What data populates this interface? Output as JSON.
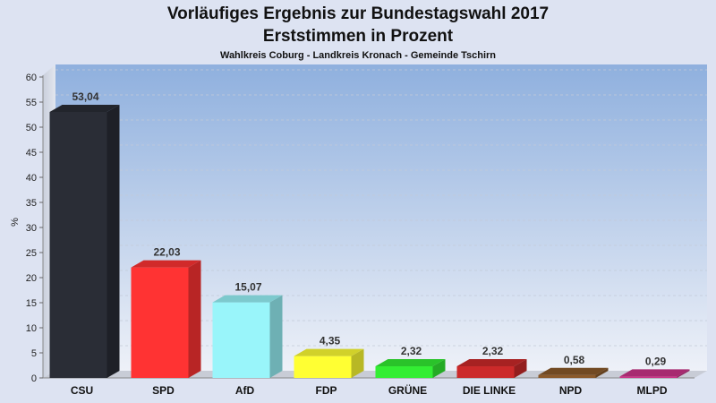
{
  "chart_data": {
    "type": "bar",
    "title": "Vorläufiges Ergebnis zur Bundestagswahl 2017",
    "subtitle": "Erststimmen in Prozent",
    "subsubtitle": "Wahlkreis Coburg - Landkreis Kronach - Gemeinde Tschirn",
    "ylabel": "%",
    "ylim": [
      0,
      60
    ],
    "yticks": [
      0,
      5,
      10,
      15,
      20,
      25,
      30,
      35,
      40,
      45,
      50,
      55,
      60
    ],
    "grid": true,
    "categories": [
      "CSU",
      "SPD",
      "AfD",
      "FDP",
      "GRÜNE",
      "DIE LINKE",
      "NPD",
      "MLPD"
    ],
    "values": [
      53.04,
      22.03,
      15.07,
      4.35,
      2.32,
      2.32,
      0.58,
      0.29
    ],
    "value_labels": [
      "53,04",
      "22,03",
      "15,07",
      "4,35",
      "2,32",
      "2,32",
      "0,58",
      "0,29"
    ],
    "colors": [
      "#2a2d36",
      "#ff3333",
      "#99f5fa",
      "#ffff33",
      "#33ee33",
      "#cc2a2a",
      "#8b5a2b",
      "#cc3388"
    ]
  }
}
